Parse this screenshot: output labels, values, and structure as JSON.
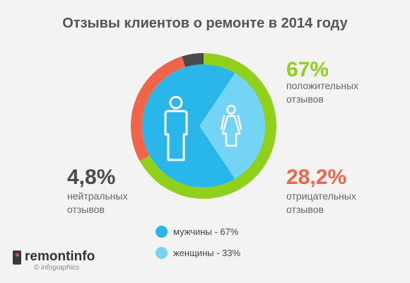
{
  "title": "Отзывы клиентов о ремонте в 2014 году",
  "chart_data": [
    {
      "type": "pie",
      "variant": "donut-outer-ring",
      "series": [
        {
          "name": "положительных отзывов",
          "label": "67%",
          "value": 67,
          "color": "#8fd11a",
          "description": "положительных\nотзывов"
        },
        {
          "name": "отрицательных отзывов",
          "label": "28,2%",
          "value": 28.2,
          "color": "#f0654a",
          "description": "отрицательных\nотзывов"
        },
        {
          "name": "нейтральных отзывов",
          "label": "4,8%",
          "value": 4.8,
          "color": "#4a4a4a",
          "description": "нейтральных\nотзывов"
        }
      ]
    },
    {
      "type": "pie",
      "variant": "inner-disc",
      "series": [
        {
          "name": "мужчины",
          "value": 67,
          "color": "#29b6e9",
          "legend": "мужчины - 67%",
          "icon": "man-icon"
        },
        {
          "name": "женщины",
          "value": 33,
          "color": "#74d4f5",
          "legend": "женщины - 33%",
          "icon": "woman-icon"
        }
      ]
    }
  ],
  "logo": {
    "name": "remontinfo",
    "subtitle": "© infographics"
  }
}
